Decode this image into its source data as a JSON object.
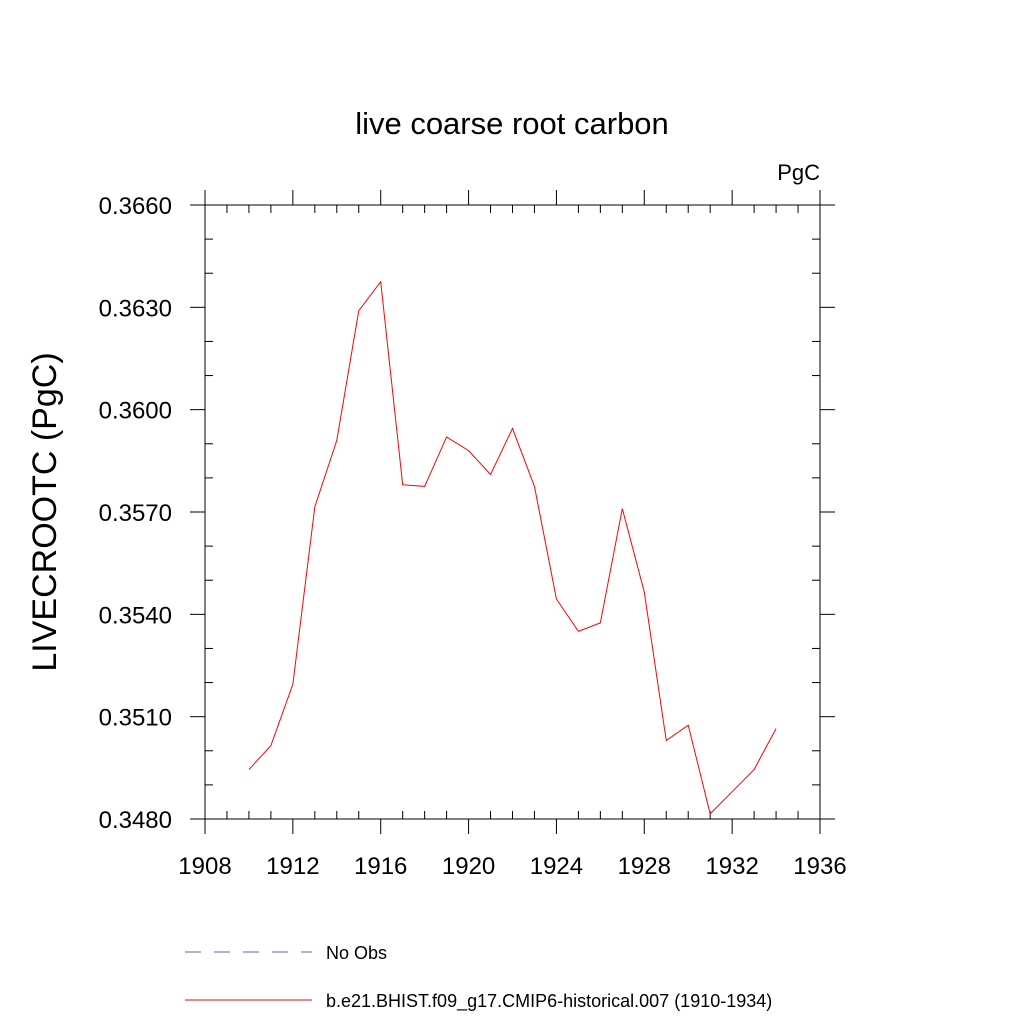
{
  "chart_data": {
    "type": "line",
    "title": "live coarse root carbon",
    "units": "PgC",
    "ylabel": "LIVECROOTC  (PgC)",
    "xlabel": "",
    "xlim": [
      1908,
      1936
    ],
    "ylim": [
      0.348,
      0.366
    ],
    "x_ticks": [
      "1908",
      "1912",
      "1916",
      "1920",
      "1924",
      "1928",
      "1932",
      "1936"
    ],
    "y_ticks": [
      "0.3480",
      "0.3510",
      "0.3540",
      "0.3570",
      "0.3600",
      "0.3630",
      "0.3660"
    ],
    "grid": false,
    "legend_position": "bottom",
    "series": [
      {
        "name": "b.e21.BHIST.f09_g17.CMIP6-historical.007 (1910-1934)",
        "color": "#ff0000",
        "style": "solid",
        "x": [
          1910,
          1911,
          1912,
          1913,
          1914,
          1915,
          1916,
          1917,
          1918,
          1919,
          1920,
          1921,
          1922,
          1923,
          1924,
          1925,
          1926,
          1927,
          1928,
          1929,
          1930,
          1931,
          1932,
          1933,
          1934
        ],
        "y": [
          0.34945,
          0.35015,
          0.35195,
          0.35715,
          0.3591,
          0.3629,
          0.36375,
          0.3578,
          0.35775,
          0.3592,
          0.3588,
          0.3581,
          0.35945,
          0.35775,
          0.35445,
          0.3535,
          0.35375,
          0.3571,
          0.35465,
          0.3503,
          0.35075,
          0.34815,
          0.3488,
          0.34945,
          0.35065
        ]
      }
    ],
    "legend": [
      {
        "label": "No Obs",
        "color": "#6a5acd",
        "style": "dashed"
      },
      {
        "label": "b.e21.BHIST.f09_g17.CMIP6-historical.007 (1910-1934)",
        "color": "#ff0000",
        "style": "solid"
      }
    ]
  }
}
